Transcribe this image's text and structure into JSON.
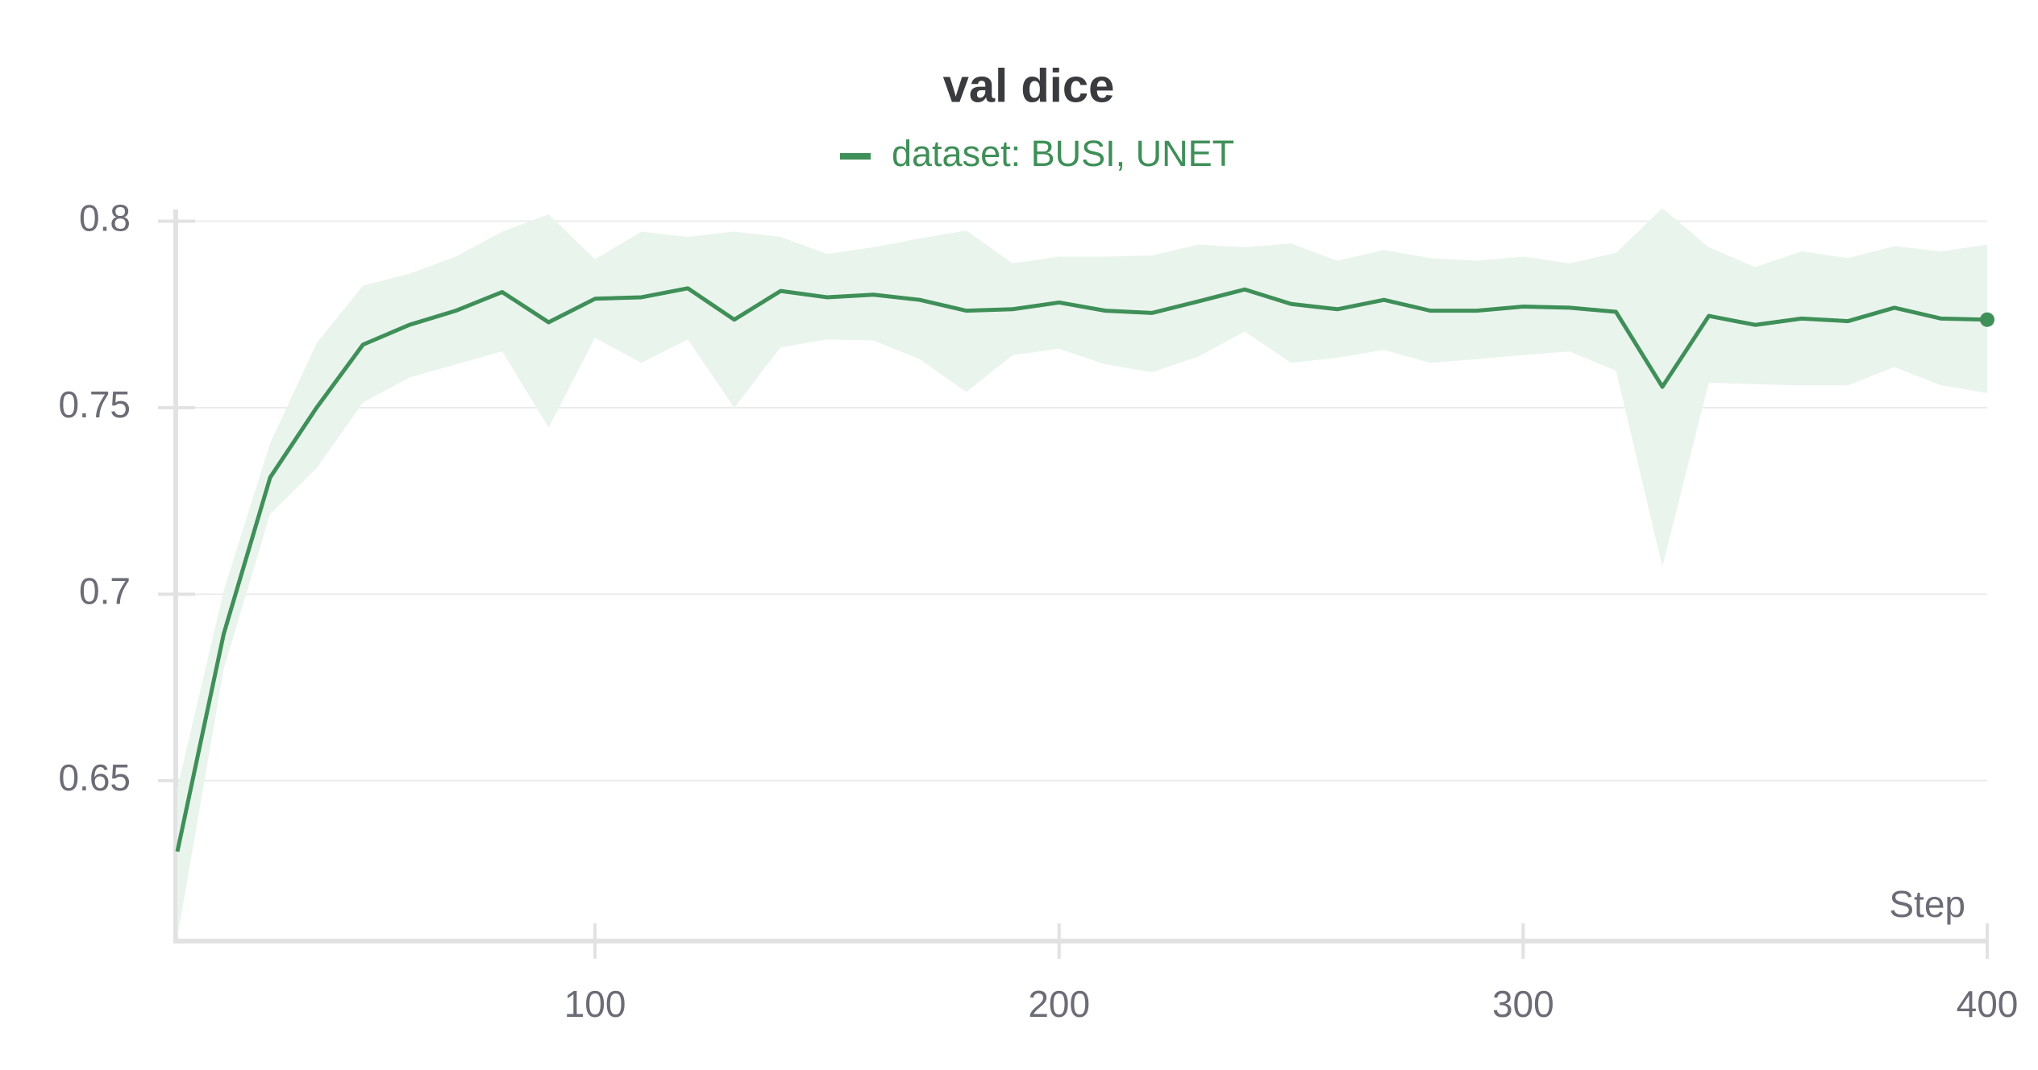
{
  "chart_data": {
    "type": "line",
    "title": "val dice",
    "x_label": "Step",
    "x": [
      10,
      20,
      30,
      40,
      50,
      60,
      70,
      80,
      90,
      100,
      110,
      120,
      130,
      140,
      150,
      160,
      170,
      180,
      190,
      200,
      210,
      220,
      230,
      240,
      250,
      260,
      270,
      280,
      290,
      300,
      310,
      320,
      330,
      340,
      350,
      360,
      370,
      380,
      390,
      400
    ],
    "series": [
      {
        "name": "dataset: BUSI, UNET",
        "color": "#3f8f58",
        "band_color": "#e9f4ed",
        "values": [
          0.631,
          0.6894,
          0.7313,
          0.75,
          0.7669,
          0.7722,
          0.776,
          0.781,
          0.7729,
          0.7792,
          0.7796,
          0.782,
          0.7736,
          0.7813,
          0.7796,
          0.7803,
          0.7789,
          0.776,
          0.7764,
          0.7782,
          0.776,
          0.7754,
          0.7785,
          0.7817,
          0.7778,
          0.7764,
          0.7789,
          0.776,
          0.776,
          0.7771,
          0.7768,
          0.7757,
          0.7556,
          0.7746,
          0.7722,
          0.7739,
          0.7732,
          0.7768,
          0.7739,
          0.7736
        ],
        "upper": [
          0.648,
          0.701,
          0.7405,
          0.7673,
          0.7827,
          0.7859,
          0.7905,
          0.7972,
          0.8018,
          0.7898,
          0.7972,
          0.7958,
          0.7972,
          0.7958,
          0.7912,
          0.793,
          0.7954,
          0.7975,
          0.7887,
          0.7905,
          0.7905,
          0.7908,
          0.7937,
          0.793,
          0.794,
          0.7894,
          0.7923,
          0.7901,
          0.7894,
          0.7905,
          0.7887,
          0.7915,
          0.8035,
          0.793,
          0.7877,
          0.7919,
          0.7901,
          0.7933,
          0.7919,
          0.7937
        ],
        "lower": [
          0.608,
          0.68,
          0.7215,
          0.7338,
          0.7514,
          0.7581,
          0.7616,
          0.7651,
          0.7447,
          0.7687,
          0.762,
          0.7683,
          0.75,
          0.7662,
          0.7683,
          0.768,
          0.763,
          0.7542,
          0.7641,
          0.7658,
          0.7616,
          0.7595,
          0.7637,
          0.7704,
          0.762,
          0.7634,
          0.7655,
          0.762,
          0.763,
          0.7641,
          0.7651,
          0.7599,
          0.7074,
          0.7567,
          0.7563,
          0.756,
          0.756,
          0.7609,
          0.756,
          0.7539
        ]
      }
    ],
    "xlim": [
      10,
      400
    ],
    "xticks": [
      100,
      200,
      300,
      400
    ],
    "ylim": [
      0.607,
      0.804
    ],
    "yticks": [
      0.65,
      0.7,
      0.75,
      0.8
    ],
    "grid": true
  }
}
